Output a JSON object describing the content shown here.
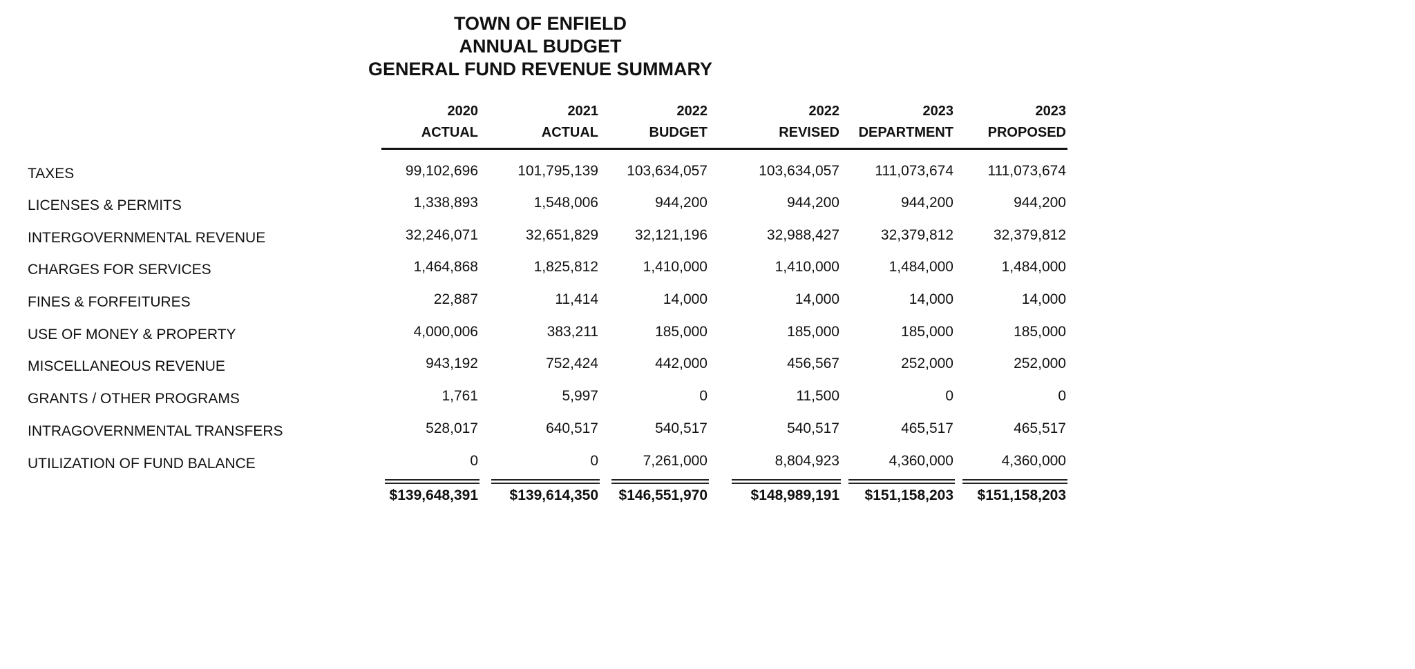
{
  "title": [
    "TOWN  OF ENFIELD",
    "ANNUAL BUDGET",
    "GENERAL FUND REVENUE SUMMARY"
  ],
  "columns": [
    {
      "year": "2020",
      "label": "ACTUAL"
    },
    {
      "year": "2021",
      "label": "ACTUAL"
    },
    {
      "year": "2022",
      "label": "BUDGET"
    },
    {
      "year": "2022",
      "label": "REVISED"
    },
    {
      "year": "2023",
      "label": "DEPARTMENT"
    },
    {
      "year": "2023",
      "label": "PROPOSED"
    }
  ],
  "rows": [
    {
      "label": "TAXES",
      "values": [
        "99,102,696",
        "101,795,139",
        "103,634,057",
        "103,634,057",
        "111,073,674",
        "111,073,674"
      ]
    },
    {
      "label": "LICENSES & PERMITS",
      "values": [
        "1,338,893",
        "1,548,006",
        "944,200",
        "944,200",
        "944,200",
        "944,200"
      ]
    },
    {
      "label": "INTERGOVERNMENTAL REVENUE",
      "values": [
        "32,246,071",
        "32,651,829",
        "32,121,196",
        "32,988,427",
        "32,379,812",
        "32,379,812"
      ]
    },
    {
      "label": "CHARGES FOR SERVICES",
      "values": [
        "1,464,868",
        "1,825,812",
        "1,410,000",
        "1,410,000",
        "1,484,000",
        "1,484,000"
      ]
    },
    {
      "label": "FINES & FORFEITURES",
      "values": [
        "22,887",
        "11,414",
        "14,000",
        "14,000",
        "14,000",
        "14,000"
      ]
    },
    {
      "label": "USE OF MONEY & PROPERTY",
      "values": [
        "4,000,006",
        "383,211",
        "185,000",
        "185,000",
        "185,000",
        "185,000"
      ]
    },
    {
      "label": "MISCELLANEOUS REVENUE",
      "values": [
        "943,192",
        "752,424",
        "442,000",
        "456,567",
        "252,000",
        "252,000"
      ]
    },
    {
      "label": "GRANTS / OTHER PROGRAMS",
      "values": [
        "1,761",
        "5,997",
        "0",
        "11,500",
        "0",
        "0"
      ]
    },
    {
      "label": "INTRAGOVERNMENTAL TRANSFERS",
      "values": [
        "528,017",
        "640,517",
        "540,517",
        "540,517",
        "465,517",
        "465,517"
      ]
    },
    {
      "label": "UTILIZATION OF FUND BALANCE",
      "values": [
        "0",
        "0",
        "7,261,000",
        "8,804,923",
        "4,360,000",
        "4,360,000"
      ]
    }
  ],
  "totals": [
    "$139,648,391",
    "$139,614,350",
    "$146,551,970",
    "$148,989,191",
    "$151,158,203",
    "$151,158,203"
  ]
}
